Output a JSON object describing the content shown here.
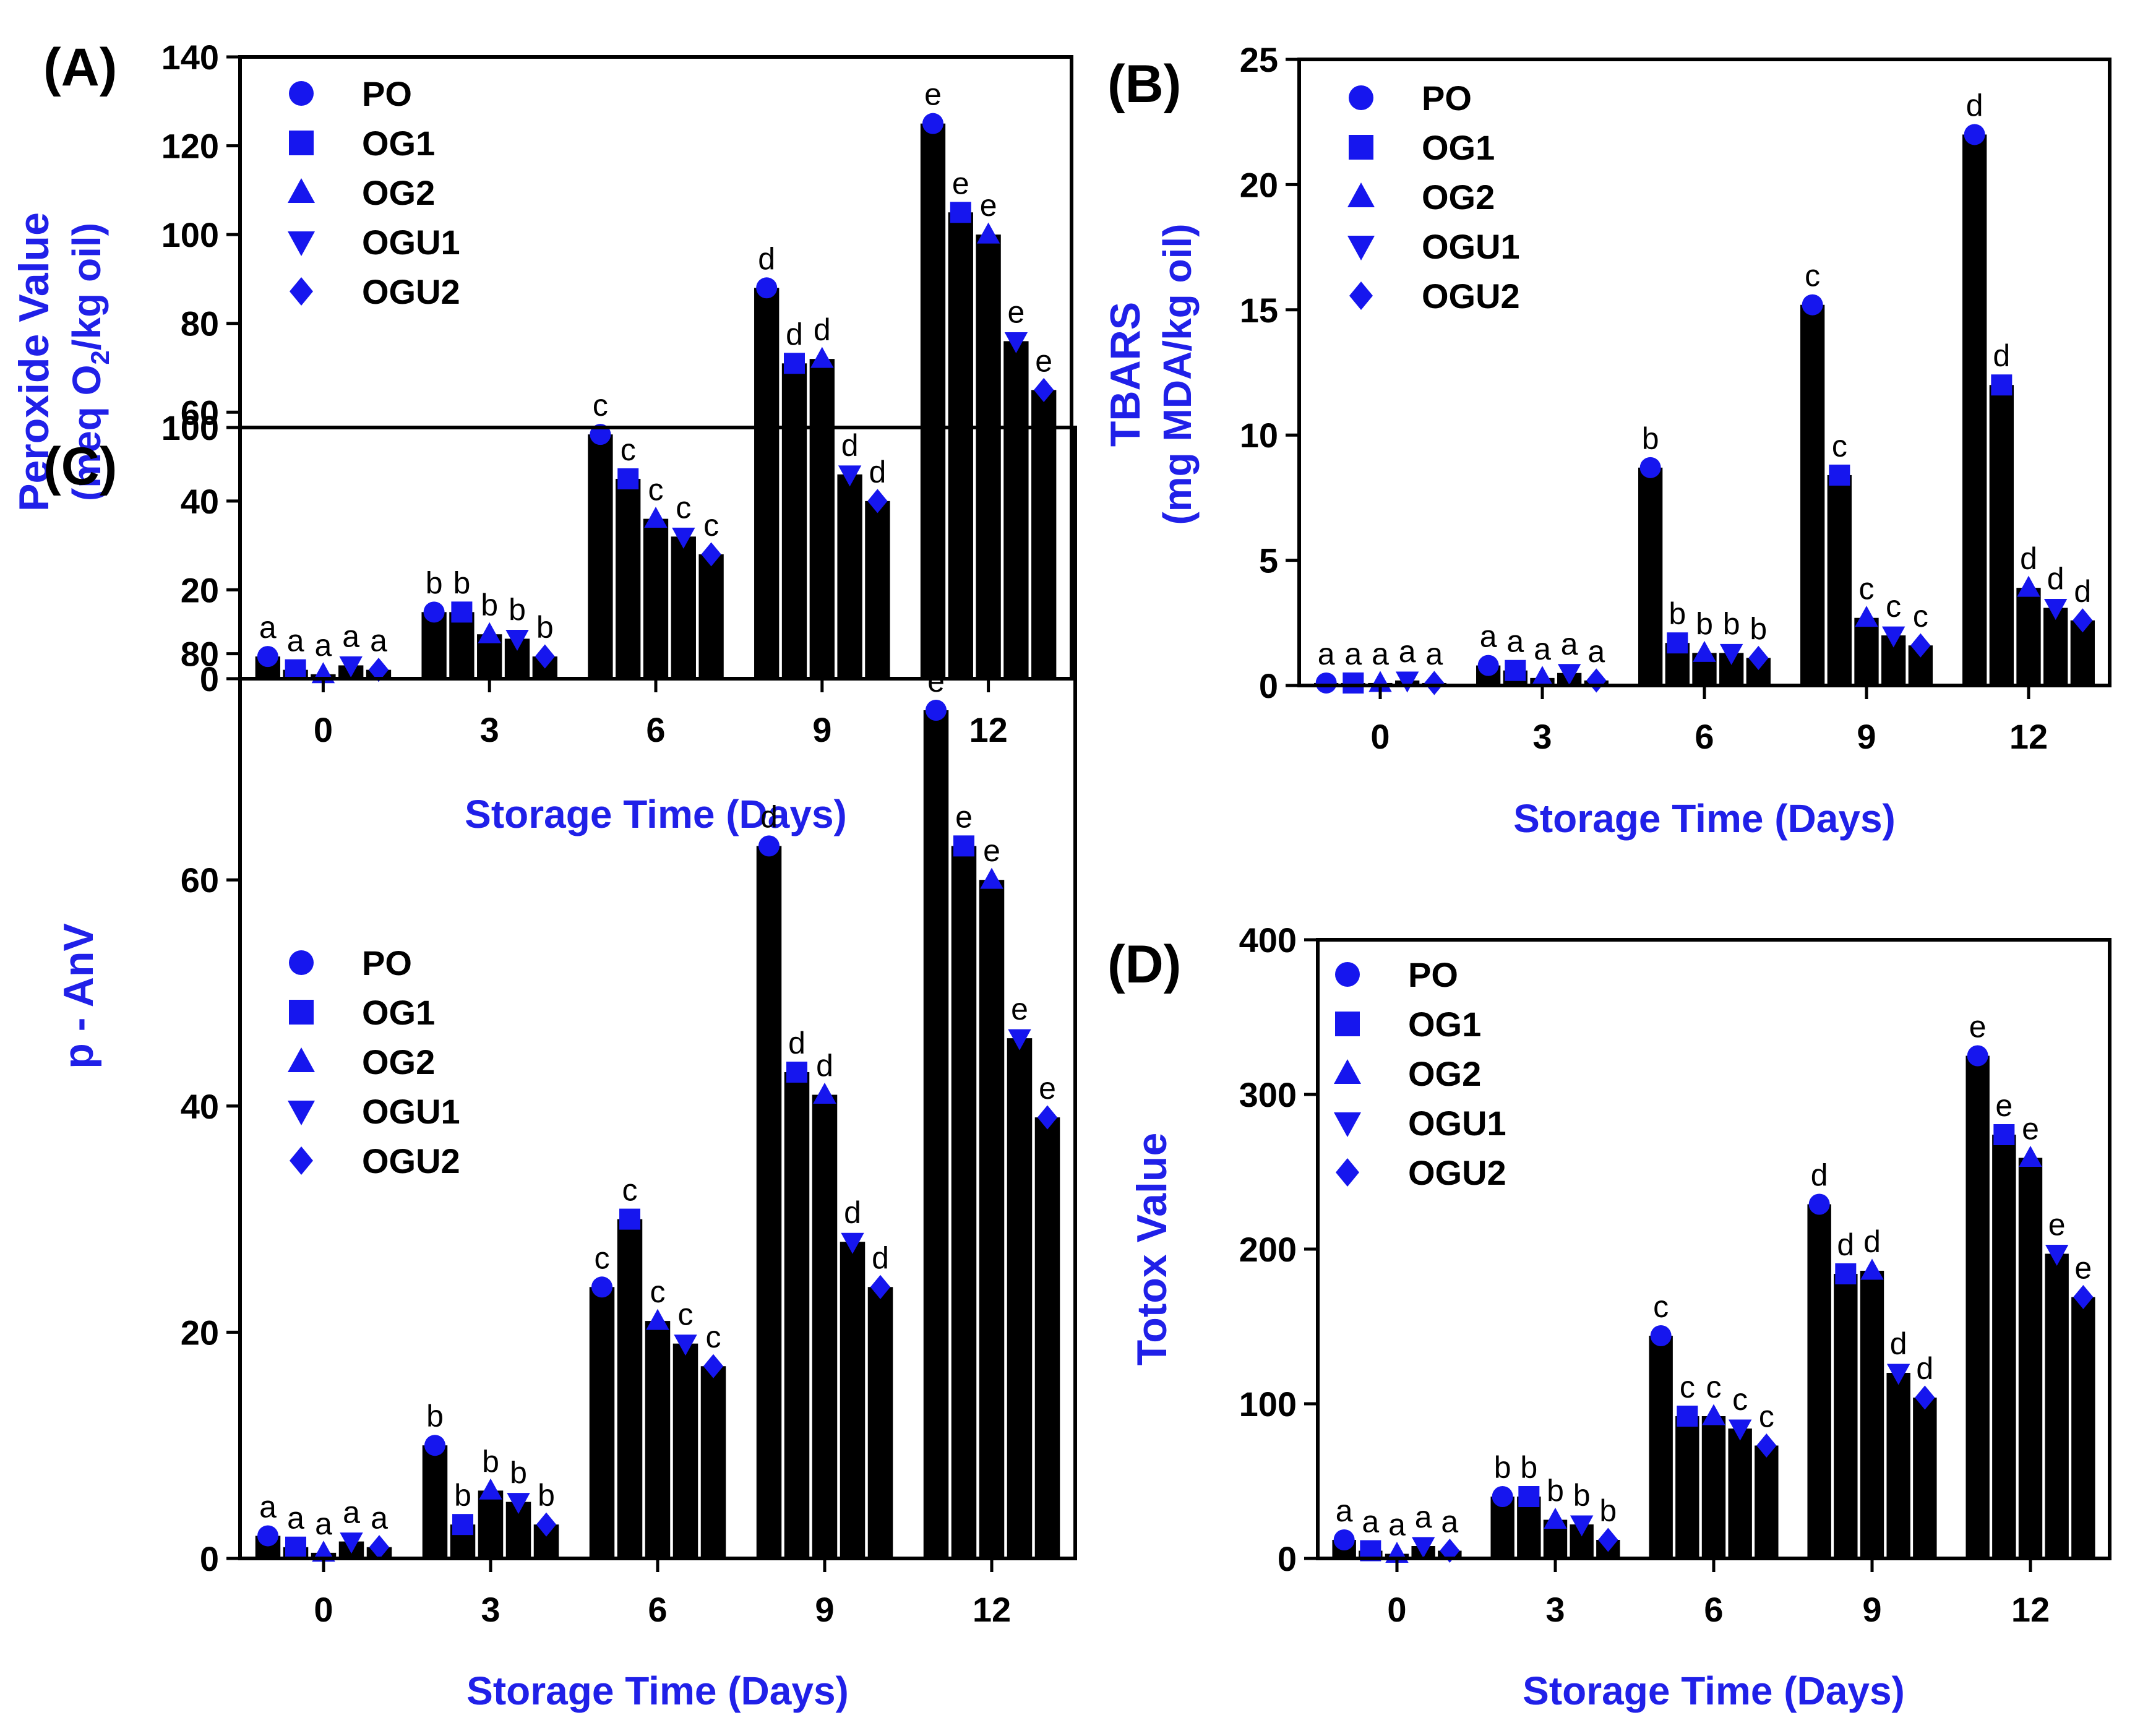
{
  "colors": {
    "bar": "#000000",
    "marker": "#1616ee",
    "axis_title": "#2020e8"
  },
  "chart_data": [
    {
      "type": "bar",
      "panel": "(A)",
      "ylabel_line1": "Peroxide Value",
      "ylabel_line2_pre": "(meq O",
      "ylabel_line2_sub": "2",
      "ylabel_line2_post": "/kg oil)",
      "xlabel": "Storage Time (Days)",
      "ylim": [
        0,
        140
      ],
      "yticks": [
        "0",
        "20",
        "40",
        "60",
        "80",
        "100",
        "120",
        "140"
      ],
      "categories": [
        "0",
        "3",
        "6",
        "9",
        "12"
      ],
      "legend_position": "top-left",
      "series": [
        {
          "name": "PO",
          "marker": "circle",
          "values": [
            5,
            15,
            55,
            88,
            125
          ],
          "letters": [
            "a",
            "b",
            "c",
            "d",
            "e"
          ]
        },
        {
          "name": "OG1",
          "marker": "square",
          "values": [
            2,
            15,
            45,
            71,
            105
          ],
          "letters": [
            "a",
            "b",
            "c",
            "d",
            "e"
          ]
        },
        {
          "name": "OG2",
          "marker": "triangle-up",
          "values": [
            1,
            10,
            36,
            72,
            100
          ],
          "letters": [
            "a",
            "b",
            "c",
            "d",
            "e"
          ]
        },
        {
          "name": "OGU1",
          "marker": "triangle-down",
          "values": [
            3,
            9,
            32,
            46,
            76
          ],
          "letters": [
            "a",
            "b",
            "c",
            "d",
            "e"
          ]
        },
        {
          "name": "OGU2",
          "marker": "diamond",
          "values": [
            2,
            5,
            28,
            40,
            65
          ],
          "letters": [
            "a",
            "b",
            "c",
            "d",
            "e"
          ]
        }
      ]
    },
    {
      "type": "bar",
      "panel": "(B)",
      "ylabel_line1": "TBARS",
      "ylabel_line2": "(mg MDA/kg oil)",
      "xlabel": "Storage Time (Days)",
      "ylim": [
        0,
        25
      ],
      "yticks": [
        "0",
        "5",
        "10",
        "15",
        "20",
        "25"
      ],
      "categories": [
        "0",
        "3",
        "6",
        "9",
        "12"
      ],
      "legend_position": "top-left",
      "series": [
        {
          "name": "PO",
          "marker": "circle",
          "values": [
            0.1,
            0.8,
            8.7,
            15.2,
            22.0
          ],
          "letters": [
            "a",
            "a",
            "b",
            "c",
            "d"
          ]
        },
        {
          "name": "OG1",
          "marker": "square",
          "values": [
            0.1,
            0.6,
            1.7,
            8.4,
            12.0
          ],
          "letters": [
            "a",
            "a",
            "b",
            "c",
            "d"
          ]
        },
        {
          "name": "OG2",
          "marker": "triangle-up",
          "values": [
            0.1,
            0.3,
            1.3,
            2.7,
            3.9
          ],
          "letters": [
            "a",
            "a",
            "b",
            "c",
            "d"
          ]
        },
        {
          "name": "OGU1",
          "marker": "triangle-down",
          "values": [
            0.2,
            0.5,
            1.3,
            2.0,
            3.1
          ],
          "letters": [
            "a",
            "a",
            "b",
            "c",
            "d"
          ]
        },
        {
          "name": "OGU2",
          "marker": "diamond",
          "values": [
            0.1,
            0.2,
            1.1,
            1.6,
            2.6
          ],
          "letters": [
            "a",
            "a",
            "b",
            "c",
            "d"
          ]
        }
      ]
    },
    {
      "type": "bar",
      "panel": "(C)",
      "ylabel_line1": "p - AnV",
      "xlabel": "Storage Time (Days)",
      "ylim": [
        0,
        100
      ],
      "yticks": [
        "0",
        "20",
        "40",
        "60",
        "80",
        "100"
      ],
      "categories": [
        "0",
        "3",
        "6",
        "9",
        "12"
      ],
      "legend_position": "top-left",
      "series": [
        {
          "name": "PO",
          "marker": "circle",
          "values": [
            2,
            10,
            24,
            63,
            75
          ],
          "letters": [
            "a",
            "b",
            "c",
            "d",
            "e"
          ]
        },
        {
          "name": "OG1",
          "marker": "square",
          "values": [
            1,
            3,
            30,
            43,
            63
          ],
          "letters": [
            "a",
            "b",
            "c",
            "d",
            "e"
          ]
        },
        {
          "name": "OG2",
          "marker": "triangle-up",
          "values": [
            0.5,
            6,
            21,
            41,
            60
          ],
          "letters": [
            "a",
            "b",
            "c",
            "d",
            "e"
          ]
        },
        {
          "name": "OGU1",
          "marker": "triangle-down",
          "values": [
            1.5,
            5,
            19,
            28,
            46
          ],
          "letters": [
            "a",
            "b",
            "c",
            "d",
            "e"
          ]
        },
        {
          "name": "OGU2",
          "marker": "diamond",
          "values": [
            1,
            3,
            17,
            24,
            39
          ],
          "letters": [
            "a",
            "b",
            "c",
            "d",
            "e"
          ]
        }
      ]
    },
    {
      "type": "bar",
      "panel": "(D)",
      "ylabel_line1": "Totox Value",
      "xlabel": "Storage Time (Days)",
      "ylim": [
        0,
        400
      ],
      "yticks": [
        "0",
        "100",
        "200",
        "300",
        "400"
      ],
      "categories": [
        "0",
        "3",
        "6",
        "9",
        "12"
      ],
      "legend_position": "top-left",
      "series": [
        {
          "name": "PO",
          "marker": "circle",
          "values": [
            12,
            40,
            144,
            229,
            325
          ],
          "letters": [
            "a",
            "b",
            "c",
            "d",
            "e"
          ]
        },
        {
          "name": "OG1",
          "marker": "square",
          "values": [
            5,
            40,
            92,
            184,
            274
          ],
          "letters": [
            "a",
            "b",
            "c",
            "d",
            "e"
          ]
        },
        {
          "name": "OG2",
          "marker": "triangle-up",
          "values": [
            3,
            25,
            92,
            186,
            259
          ],
          "letters": [
            "a",
            "b",
            "c",
            "d",
            "e"
          ]
        },
        {
          "name": "OGU1",
          "marker": "triangle-down",
          "values": [
            8,
            22,
            84,
            120,
            197
          ],
          "letters": [
            "a",
            "b",
            "c",
            "d",
            "e"
          ]
        },
        {
          "name": "OGU2",
          "marker": "diamond",
          "values": [
            5,
            12,
            73,
            104,
            169
          ],
          "letters": [
            "a",
            "b",
            "c",
            "d",
            "e"
          ]
        }
      ]
    }
  ]
}
